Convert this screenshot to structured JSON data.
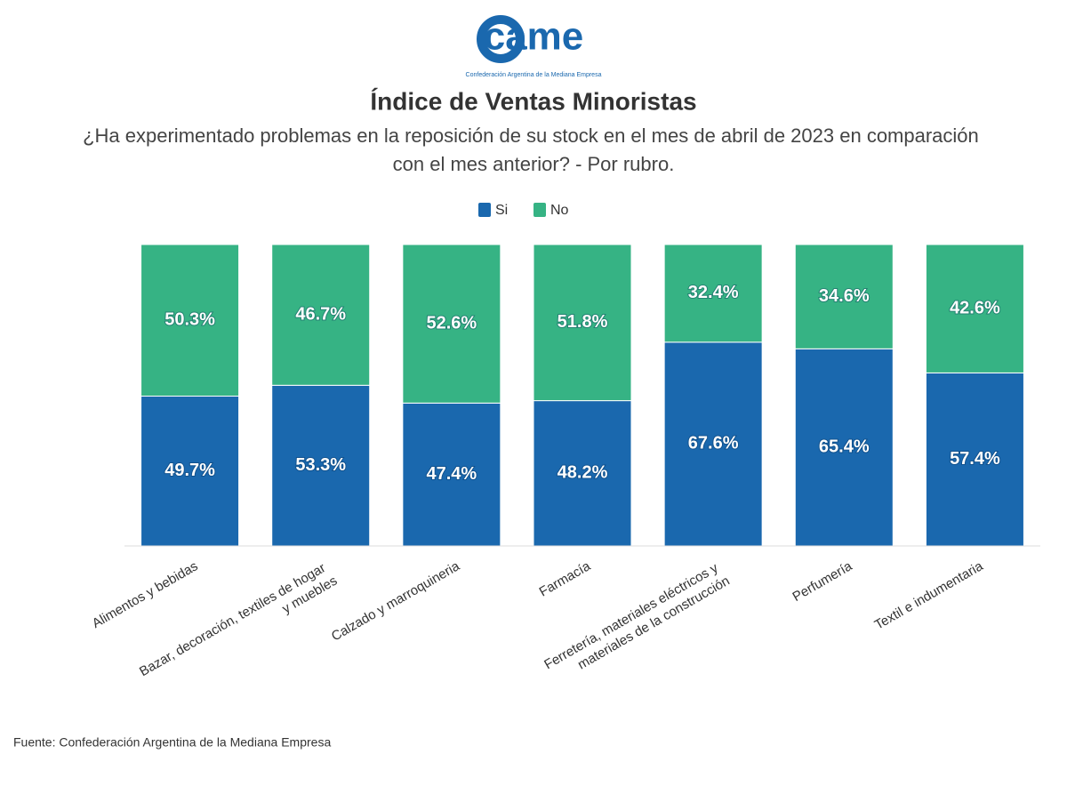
{
  "logo": {
    "text": "came",
    "tagline": "Confederación Argentina de la Mediana Empresa"
  },
  "chart_data": {
    "type": "stacked_bar",
    "title": "Índice de Ventas Minoristas",
    "subtitle": "¿Ha experimentado problemas en la reposición de su stock en el mes de abril de 2023 en comparación con el mes anterior? - Por rubro.",
    "categories": [
      "Alimentos y bebidas",
      "Bazar, decoración, textiles de hogar y muebles",
      "Calzado y marroquineria",
      "Farmacía",
      "Ferretería, materiales eléctricos y materiales de la construcción",
      "Perfumería",
      "Textil e indumentaria"
    ],
    "series": [
      {
        "name": "Si",
        "color": "#1a68ae",
        "values": [
          49.7,
          53.3,
          47.4,
          48.2,
          67.6,
          65.4,
          57.4
        ],
        "value_labels": [
          "49.7%",
          "53.3%",
          "47.4%",
          "48.2%",
          "67.6%",
          "65.4%",
          "57.4%"
        ]
      },
      {
        "name": "No",
        "color": "#36b384",
        "values": [
          50.3,
          46.7,
          52.6,
          51.8,
          32.4,
          34.6,
          42.6
        ],
        "value_labels": [
          "50.3%",
          "46.7%",
          "52.6%",
          "51.8%",
          "32.4%",
          "34.6%",
          "42.6%"
        ]
      }
    ],
    "ylim": [
      0,
      100
    ],
    "legend": "top",
    "source": "Fuente: Confederación Argentina de la Mediana Empresa"
  }
}
